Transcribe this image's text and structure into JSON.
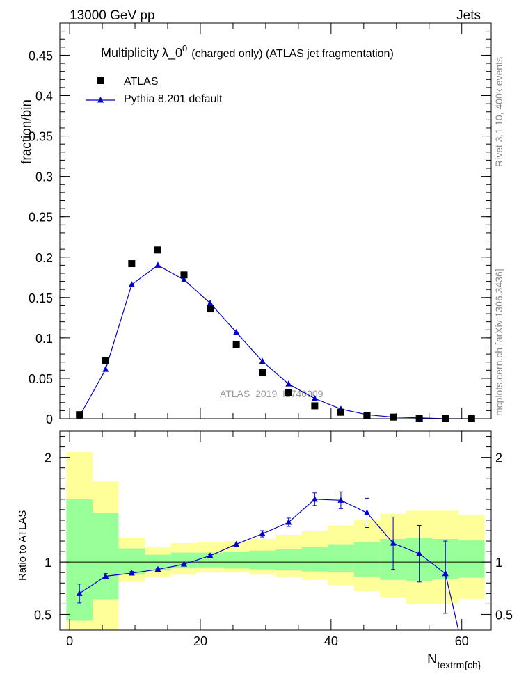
{
  "header": {
    "left": "13000 GeV pp",
    "right": "Jets"
  },
  "side_text": {
    "rivet": "Rivet 3.1.10,  400k events",
    "mcplots": "mcplots.cern.ch [arXiv:1306.3436]"
  },
  "colors": {
    "data_marker": "#000000",
    "mc_line": "#0000cc",
    "band_inner": "#99ff99",
    "band_outer": "#ffff99"
  },
  "chart_data": [
    {
      "type": "scatter",
      "title": "Multiplicity  λ_0",
      "title_sup": "0",
      "title_suffix": "(charged only) (ATLAS jet fragmentation)",
      "ylabel": "fraction/bin",
      "watermark": "ATLAS_2019_I1740909",
      "xlim": [
        -1.5,
        64.5
      ],
      "ylim": [
        0,
        0.49
      ],
      "yticks": [
        "0",
        "0.05",
        "0.1",
        "0.15",
        "0.2",
        "0.25",
        "0.3",
        "0.35",
        "0.4",
        "0.45"
      ],
      "x": [
        1.5,
        5.5,
        9.5,
        13.5,
        17.5,
        21.5,
        25.5,
        29.5,
        33.5,
        37.5,
        41.5,
        45.5,
        49.5,
        53.5,
        57.5,
        61.5
      ],
      "series": [
        {
          "name": "ATLAS",
          "marker": "square",
          "values": [
            0.005,
            0.072,
            0.192,
            0.209,
            0.178,
            0.136,
            0.092,
            0.057,
            0.032,
            0.016,
            0.008,
            0.004,
            0.002,
            0.0,
            0.0,
            0.0
          ]
        },
        {
          "name": "Pythia 8.201 default",
          "marker": "triangle",
          "values": [
            0.003,
            0.061,
            0.166,
            0.19,
            0.172,
            0.143,
            0.107,
            0.071,
            0.043,
            0.025,
            0.012,
            0.005,
            0.002,
            0.001,
            0.0,
            0.0
          ]
        }
      ]
    },
    {
      "type": "line",
      "ylabel": "Ratio to ATLAS",
      "xlabel": "N",
      "xlabel_sub": "textrm{ch}",
      "xlim": [
        -1.5,
        64.5
      ],
      "ylim": [
        0.35,
        2.25
      ],
      "xticks": [
        "0",
        "20",
        "40",
        "60"
      ],
      "yticks": [
        "0.5",
        "1",
        "2"
      ],
      "bins": [
        [
          -0.5,
          3.5
        ],
        [
          3.5,
          7.5
        ],
        [
          7.5,
          11.5
        ],
        [
          11.5,
          15.5
        ],
        [
          15.5,
          19.5
        ],
        [
          19.5,
          23.5
        ],
        [
          23.5,
          27.5
        ],
        [
          27.5,
          31.5
        ],
        [
          31.5,
          35.5
        ],
        [
          35.5,
          39.5
        ],
        [
          39.5,
          43.5
        ],
        [
          43.5,
          47.5
        ],
        [
          47.5,
          51.5
        ],
        [
          51.5,
          55.5
        ],
        [
          55.5,
          59.5
        ],
        [
          59.5,
          63.5
        ]
      ],
      "band_inner": [
        [
          0.44,
          1.6
        ],
        [
          0.64,
          1.47
        ],
        [
          0.88,
          1.13
        ],
        [
          0.92,
          1.07
        ],
        [
          0.94,
          1.09
        ],
        [
          0.95,
          1.09
        ],
        [
          0.94,
          1.1
        ],
        [
          0.93,
          1.11
        ],
        [
          0.92,
          1.12
        ],
        [
          0.91,
          1.14
        ],
        [
          0.9,
          1.17
        ],
        [
          0.86,
          1.19
        ],
        [
          0.83,
          1.22
        ],
        [
          0.82,
          1.23
        ],
        [
          0.84,
          1.22
        ],
        [
          0.85,
          1.21
        ]
      ],
      "band_outer": [
        [
          0.3,
          2.05
        ],
        [
          0.3,
          1.77
        ],
        [
          0.81,
          1.23
        ],
        [
          0.86,
          1.14
        ],
        [
          0.88,
          1.18
        ],
        [
          0.9,
          1.19
        ],
        [
          0.9,
          1.2
        ],
        [
          0.88,
          1.22
        ],
        [
          0.86,
          1.26
        ],
        [
          0.83,
          1.3
        ],
        [
          0.78,
          1.35
        ],
        [
          0.72,
          1.4
        ],
        [
          0.66,
          1.46
        ],
        [
          0.6,
          1.49
        ],
        [
          0.6,
          1.49
        ],
        [
          0.65,
          1.45
        ]
      ],
      "x": [
        1.5,
        5.5,
        9.5,
        13.5,
        17.5,
        21.5,
        25.5,
        29.5,
        33.5,
        37.5,
        41.5,
        45.5,
        49.5,
        53.5,
        57.5,
        59.5
      ],
      "values": [
        0.7,
        0.865,
        0.895,
        0.93,
        0.98,
        1.06,
        1.17,
        1.27,
        1.38,
        1.6,
        1.59,
        1.47,
        1.18,
        1.08,
        0.89,
        0.3
      ],
      "errors": [
        [
          0.61,
          0.79
        ],
        [
          0.84,
          0.89
        ],
        [
          0.88,
          0.91
        ],
        [
          0.92,
          0.94
        ],
        [
          0.97,
          0.99
        ],
        [
          1.05,
          1.07
        ],
        [
          1.15,
          1.19
        ],
        [
          1.24,
          1.3
        ],
        [
          1.34,
          1.42
        ],
        [
          1.54,
          1.66
        ],
        [
          1.51,
          1.67
        ],
        [
          1.33,
          1.61
        ],
        [
          0.93,
          1.43
        ],
        [
          0.81,
          1.35
        ],
        [
          0.51,
          1.2
        ],
        null
      ],
      "reference": 1
    }
  ]
}
